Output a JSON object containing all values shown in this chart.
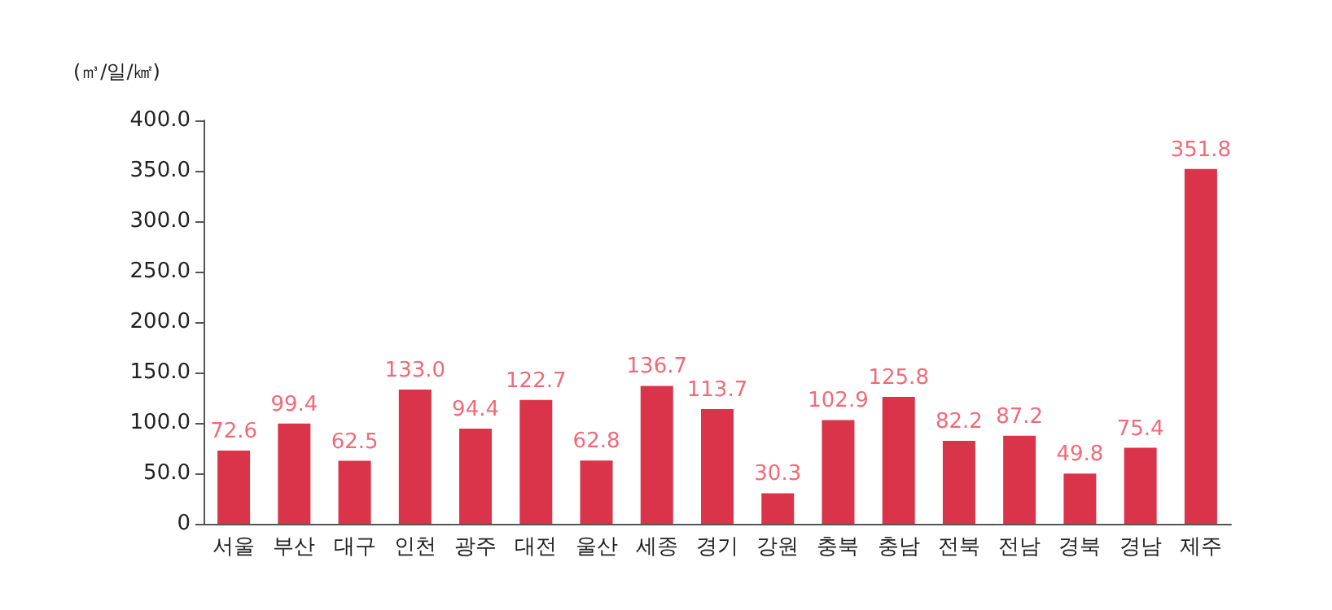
{
  "chart_data": {
    "type": "bar",
    "ylabel": "(㎥/일/㎢)",
    "categories": [
      "서울",
      "부산",
      "대구",
      "인천",
      "광주",
      "대전",
      "울산",
      "세종",
      "경기",
      "강원",
      "충북",
      "충남",
      "전북",
      "전남",
      "경북",
      "경남",
      "제주"
    ],
    "values": [
      72.6,
      99.4,
      62.5,
      133.0,
      94.4,
      122.7,
      62.8,
      136.7,
      113.7,
      30.3,
      102.9,
      125.8,
      82.2,
      87.2,
      49.8,
      75.4,
      351.8
    ],
    "value_labels": [
      "72.6",
      "99.4",
      "62.5",
      "133.0",
      "94.4",
      "122.7",
      "62.8",
      "136.7",
      "113.7",
      "30.3",
      "102.9",
      "125.8",
      "82.2",
      "87.2",
      "49.8",
      "75.4",
      "351.8"
    ],
    "color": "#d9344a",
    "ylim": [
      0,
      400
    ],
    "yticks": [
      {
        "value": 0,
        "label": "0"
      },
      {
        "value": 50,
        "label": "50.0"
      },
      {
        "value": 100,
        "label": "100.0"
      },
      {
        "value": 150,
        "label": "150.0"
      },
      {
        "value": 200,
        "label": "200.0"
      },
      {
        "value": 250,
        "label": "250.0"
      },
      {
        "value": 300,
        "label": "300.0"
      },
      {
        "value": 350,
        "label": "350.0"
      },
      {
        "value": 400,
        "label": "400.0"
      }
    ],
    "grid": false
  }
}
